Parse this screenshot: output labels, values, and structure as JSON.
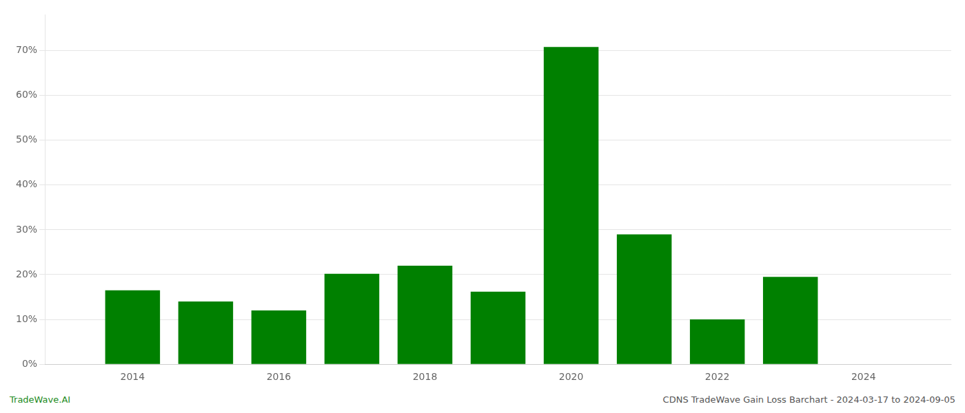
{
  "chart_data": {
    "type": "bar",
    "x": [
      2014,
      2015,
      2016,
      2017,
      2018,
      2019,
      2020,
      2021,
      2022,
      2023
    ],
    "values": [
      16.5,
      14.0,
      12.0,
      20.2,
      22.0,
      16.2,
      70.8,
      29.0,
      10.0,
      19.5
    ],
    "color": "#008000",
    "xlim": [
      2012.8,
      2025.2
    ],
    "xticks": [
      2014,
      2016,
      2018,
      2020,
      2022,
      2024
    ],
    "ylim": [
      0,
      78
    ],
    "yticks": [
      {
        "value": 0,
        "label": "0%"
      },
      {
        "value": 10,
        "label": "10%"
      },
      {
        "value": 20,
        "label": "20%"
      },
      {
        "value": 30,
        "label": "30%"
      },
      {
        "value": 40,
        "label": "40%"
      },
      {
        "value": 50,
        "label": "50%"
      },
      {
        "value": 60,
        "label": "60%"
      },
      {
        "value": 70,
        "label": "70%"
      }
    ],
    "grid": true,
    "annotations": [
      {
        "text": "TradeWave.AI",
        "color": "#228B22"
      },
      {
        "text": "CDNS TradeWave Gain Loss Barchart - 2024-03-17 to 2024-09-05",
        "color": "#555555"
      }
    ]
  }
}
